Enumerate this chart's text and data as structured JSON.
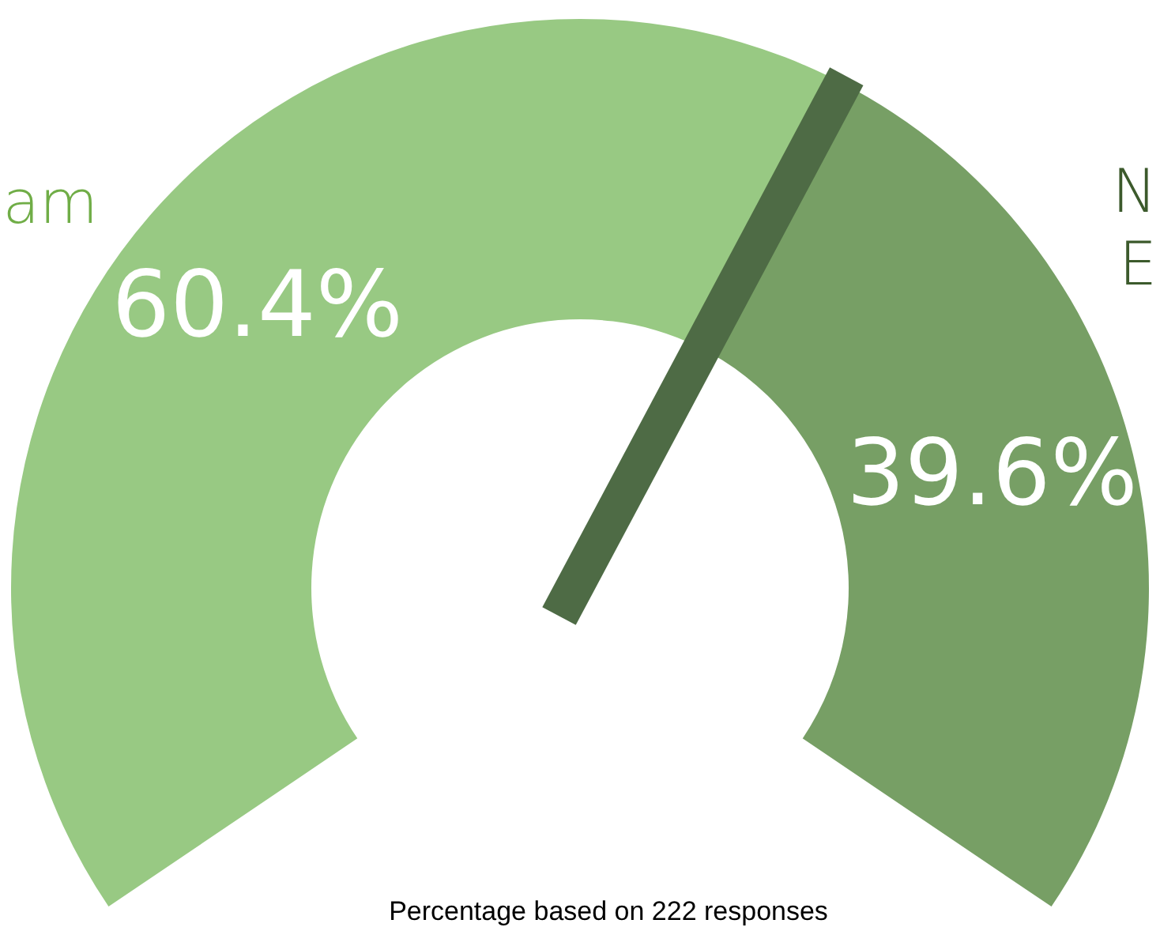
{
  "chart_data": {
    "type": "donut",
    "categories": [
      "am",
      "N E"
    ],
    "values": [
      60.4,
      39.6
    ],
    "colors": [
      "#98c983",
      "#779f65"
    ],
    "value_labels": [
      "60.4%",
      "39.6%"
    ],
    "needle": "N E",
    "annotations": [
      "Percentage based on 222 responses"
    ]
  }
}
